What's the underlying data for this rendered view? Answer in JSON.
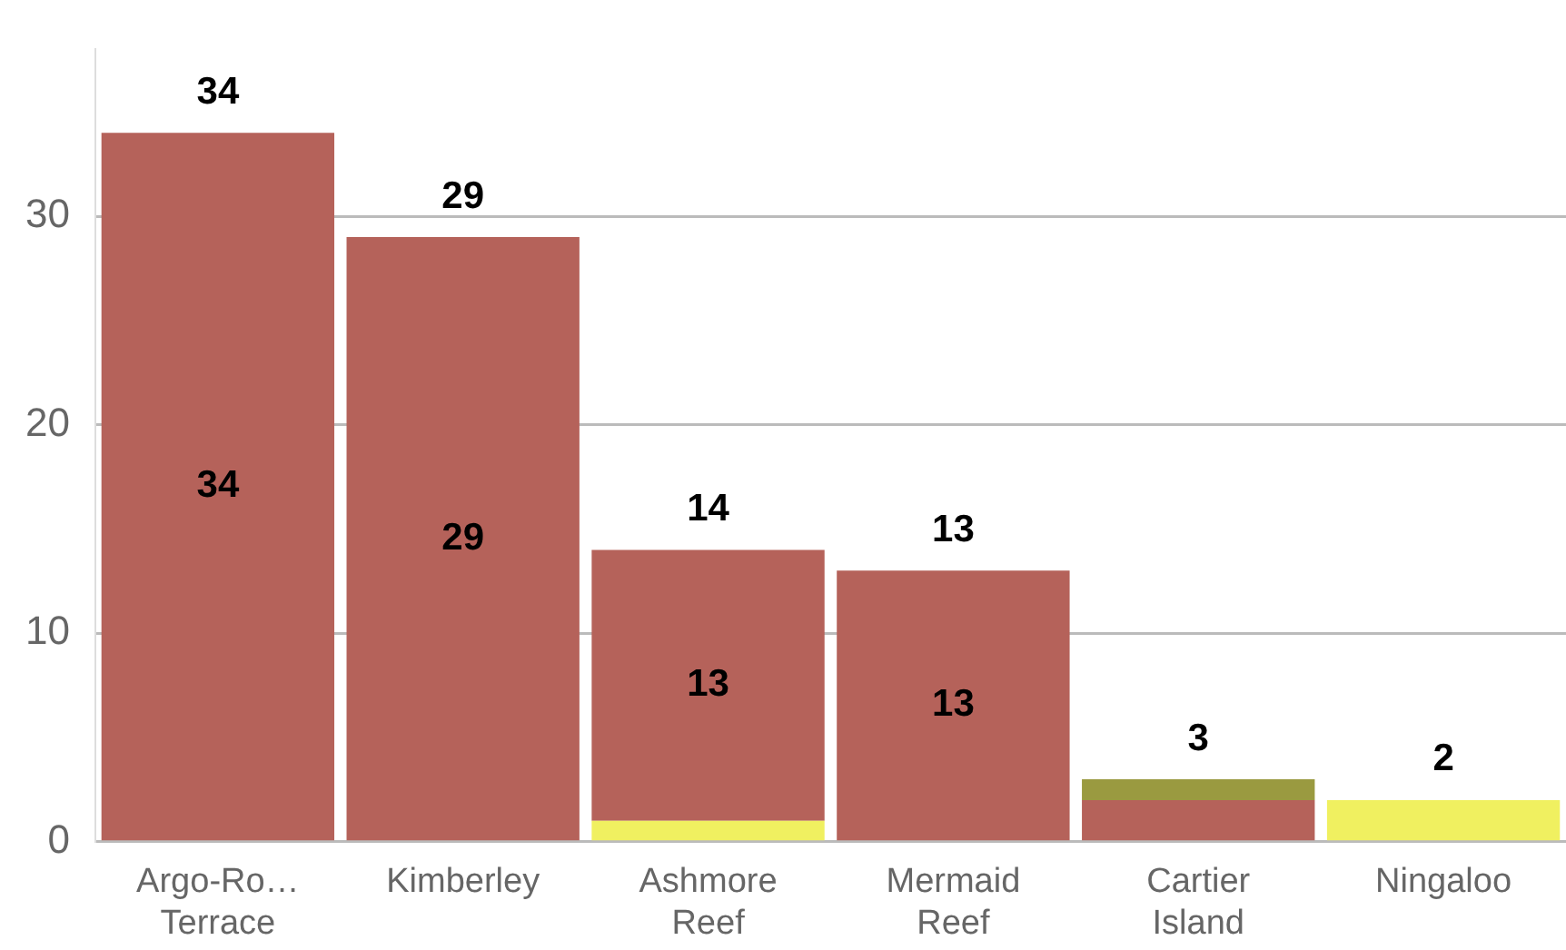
{
  "chart_data": {
    "type": "bar",
    "stacked": true,
    "categories": [
      "Argo-Ro… Terrace",
      "Kimberley",
      "Ashmore Reef",
      "Mermaid Reef",
      "Cartier Island",
      "Ningaloo"
    ],
    "series": [
      {
        "color": "#f0f060",
        "values": [
          null,
          null,
          1,
          null,
          null,
          2
        ],
        "value_labels": [
          null,
          null,
          null,
          null,
          null,
          null
        ]
      },
      {
        "color": "#b5625a",
        "values": [
          34,
          29,
          13,
          13,
          2,
          null
        ],
        "value_labels": [
          "34",
          "29",
          "13",
          "13",
          null,
          null
        ]
      },
      {
        "color": "#9a9a40",
        "values": [
          null,
          null,
          null,
          null,
          1,
          null
        ],
        "value_labels": [
          null,
          null,
          null,
          null,
          null,
          null
        ]
      }
    ],
    "totals": [
      "34",
      "29",
      "14",
      "13",
      "3",
      "2"
    ],
    "ylim": [
      0,
      38
    ],
    "yticks": [
      0,
      10,
      20,
      30
    ],
    "grid": "y",
    "legend": false
  }
}
